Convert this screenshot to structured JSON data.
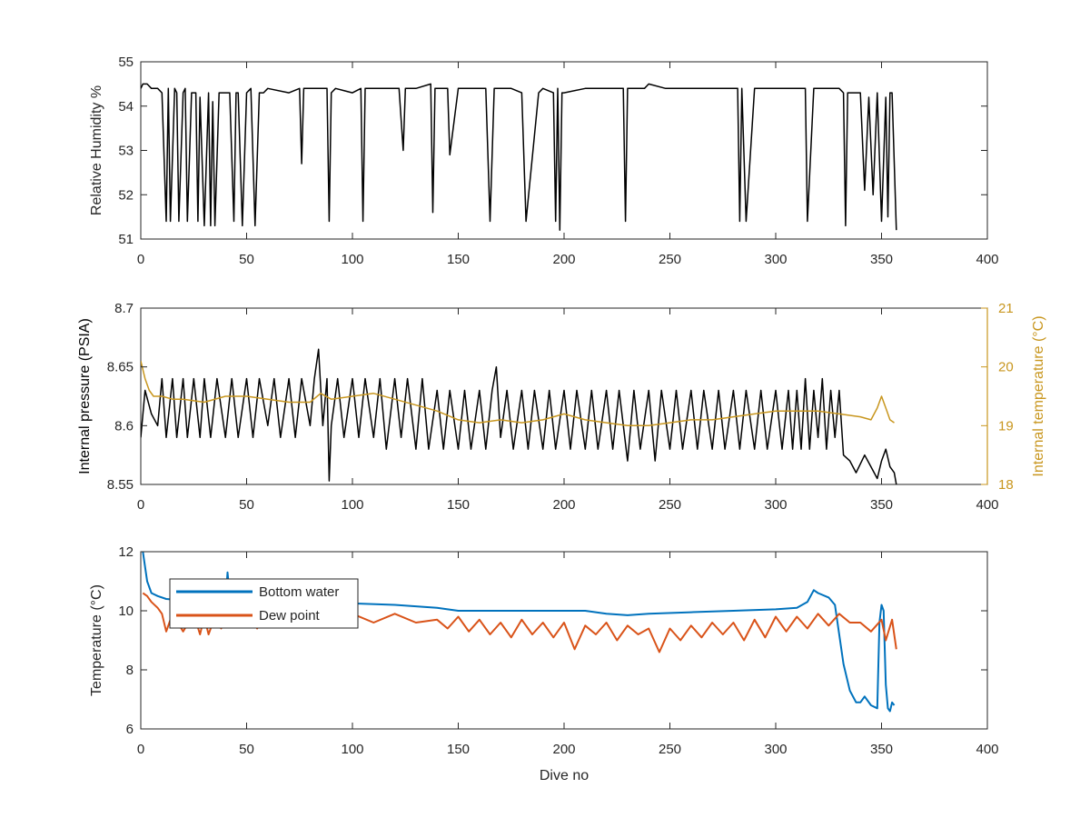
{
  "figure": {
    "xlabel": "Dive no",
    "colors": {
      "axes": "#262626",
      "black_series": "#000000",
      "temperature_right": "#c8961e",
      "bottom_water": "#0072bd",
      "dew_point": "#d95319"
    }
  },
  "chart_data": [
    {
      "type": "line",
      "title": "",
      "xlabel": "",
      "ylabel": "Relative Humidity %",
      "xlim": [
        0,
        400
      ],
      "ylim": [
        51,
        55
      ],
      "xticks": [
        "0",
        "50",
        "100",
        "150",
        "200",
        "250",
        "300",
        "350",
        "400"
      ],
      "yticks": [
        "51",
        "52",
        "53",
        "54",
        "55"
      ],
      "series": [
        {
          "color": "#000000",
          "x": [
            0,
            1,
            3,
            5,
            8,
            10,
            12,
            13,
            14,
            16,
            17,
            18,
            20,
            21,
            22,
            24,
            26,
            27,
            28,
            30,
            32,
            33,
            34,
            35,
            37,
            38,
            40,
            42,
            44,
            45,
            46,
            48,
            50,
            52,
            54,
            56,
            58,
            60,
            70,
            75,
            76,
            77,
            80,
            88,
            89,
            90,
            92,
            100,
            104,
            105,
            106,
            108,
            115,
            122,
            124,
            125,
            126,
            130,
            137,
            138,
            139,
            140,
            145,
            146,
            150,
            152,
            158,
            160,
            163,
            165,
            167,
            168,
            170,
            175,
            180,
            182,
            188,
            190,
            195,
            196,
            197,
            198,
            199,
            200,
            210,
            215,
            220,
            228,
            229,
            230,
            238,
            240,
            248,
            250,
            260,
            268,
            270,
            278,
            282,
            283,
            284,
            286,
            290,
            292,
            295,
            300,
            310,
            312,
            314,
            315,
            318,
            320,
            325,
            328,
            330,
            332,
            333,
            334,
            340,
            342,
            344,
            346,
            348,
            350,
            352,
            353,
            354,
            355,
            357
          ],
          "y": [
            54.4,
            54.5,
            54.5,
            54.4,
            54.4,
            54.3,
            51.4,
            54.4,
            51.4,
            54.4,
            54.3,
            51.4,
            54.3,
            54.4,
            51.4,
            54.3,
            54.3,
            51.4,
            54.2,
            51.3,
            54.3,
            51.3,
            54.1,
            51.3,
            54.3,
            54.3,
            54.3,
            54.3,
            51.4,
            54.3,
            54.3,
            51.3,
            54.3,
            54.4,
            51.3,
            54.3,
            54.3,
            54.4,
            54.3,
            54.4,
            52.7,
            54.4,
            54.4,
            54.4,
            51.4,
            54.3,
            54.4,
            54.3,
            54.4,
            51.4,
            54.4,
            54.4,
            54.4,
            54.4,
            53.0,
            54.4,
            54.4,
            54.4,
            54.5,
            51.6,
            54.4,
            54.4,
            54.4,
            52.9,
            54.4,
            54.4,
            54.4,
            54.4,
            54.4,
            51.4,
            54.4,
            54.4,
            54.4,
            54.4,
            54.3,
            51.4,
            54.3,
            54.4,
            54.3,
            51.4,
            54.4,
            51.2,
            54.3,
            54.3,
            54.4,
            54.4,
            54.4,
            54.4,
            51.4,
            54.4,
            54.4,
            54.5,
            54.4,
            54.4,
            54.4,
            54.4,
            54.4,
            54.4,
            54.4,
            51.4,
            54.4,
            51.4,
            54.4,
            54.4,
            54.4,
            54.4,
            54.4,
            54.4,
            54.4,
            51.4,
            54.4,
            54.4,
            54.4,
            54.4,
            54.4,
            54.3,
            51.3,
            54.3,
            54.3,
            52.1,
            54.2,
            52.0,
            54.3,
            51.4,
            54.2,
            51.5,
            54.3,
            54.3,
            51.2
          ]
        }
      ]
    },
    {
      "type": "line",
      "title": "",
      "xlabel": "",
      "ylabel": "Internal pressure (PSIA)",
      "y2label": "Internal temperature (°C)",
      "xlim": [
        0,
        400
      ],
      "ylim": [
        8.55,
        8.7
      ],
      "y2lim": [
        18,
        21
      ],
      "xticks": [
        "0",
        "50",
        "100",
        "150",
        "200",
        "250",
        "300",
        "350",
        "400"
      ],
      "yticks": [
        "8.55",
        "8.6",
        "8.65",
        "8.7"
      ],
      "y2ticks": [
        "18",
        "19",
        "20",
        "21"
      ],
      "series": [
        {
          "axis": "left",
          "color": "#000000",
          "x": [
            0,
            2,
            5,
            8,
            10,
            12,
            15,
            17,
            20,
            22,
            25,
            28,
            30,
            33,
            36,
            40,
            43,
            46,
            50,
            53,
            56,
            60,
            63,
            66,
            70,
            73,
            76,
            80,
            82,
            84,
            86,
            88,
            89,
            90,
            93,
            96,
            100,
            103,
            106,
            110,
            113,
            116,
            120,
            123,
            126,
            130,
            133,
            136,
            140,
            143,
            146,
            150,
            153,
            156,
            160,
            163,
            166,
            168,
            170,
            173,
            176,
            180,
            183,
            186,
            190,
            193,
            196,
            200,
            203,
            206,
            210,
            213,
            216,
            220,
            223,
            226,
            230,
            233,
            236,
            240,
            243,
            246,
            250,
            253,
            256,
            260,
            263,
            266,
            270,
            273,
            276,
            280,
            283,
            286,
            290,
            293,
            296,
            300,
            303,
            306,
            308,
            310,
            312,
            314,
            316,
            318,
            320,
            322,
            324,
            326,
            328,
            330,
            332,
            335,
            338,
            342,
            345,
            348,
            350,
            352,
            354,
            356,
            357
          ],
          "y": [
            8.59,
            8.63,
            8.61,
            8.6,
            8.64,
            8.59,
            8.64,
            8.59,
            8.64,
            8.59,
            8.64,
            8.59,
            8.64,
            8.59,
            8.64,
            8.59,
            8.64,
            8.59,
            8.64,
            8.59,
            8.64,
            8.6,
            8.64,
            8.59,
            8.64,
            8.59,
            8.64,
            8.6,
            8.64,
            8.665,
            8.6,
            8.64,
            8.553,
            8.6,
            8.64,
            8.59,
            8.64,
            8.59,
            8.64,
            8.59,
            8.64,
            8.58,
            8.64,
            8.59,
            8.64,
            8.58,
            8.64,
            8.58,
            8.63,
            8.58,
            8.63,
            8.58,
            8.63,
            8.58,
            8.63,
            8.58,
            8.63,
            8.65,
            8.59,
            8.63,
            8.58,
            8.63,
            8.58,
            8.63,
            8.58,
            8.63,
            8.58,
            8.63,
            8.58,
            8.63,
            8.58,
            8.63,
            8.58,
            8.63,
            8.58,
            8.63,
            8.57,
            8.63,
            8.58,
            8.63,
            8.57,
            8.63,
            8.58,
            8.63,
            8.58,
            8.63,
            8.58,
            8.63,
            8.58,
            8.63,
            8.58,
            8.63,
            8.58,
            8.63,
            8.58,
            8.63,
            8.58,
            8.63,
            8.58,
            8.63,
            8.58,
            8.63,
            8.58,
            8.64,
            8.58,
            8.63,
            8.59,
            8.64,
            8.58,
            8.63,
            8.59,
            8.63,
            8.575,
            8.57,
            8.56,
            8.575,
            8.565,
            8.555,
            8.57,
            8.58,
            8.565,
            8.56,
            8.55
          ]
        },
        {
          "axis": "right",
          "color": "#c8961e",
          "x": [
            0,
            2,
            4,
            6,
            10,
            15,
            20,
            30,
            40,
            50,
            60,
            70,
            80,
            85,
            90,
            100,
            110,
            120,
            130,
            140,
            150,
            160,
            170,
            180,
            190,
            200,
            210,
            220,
            230,
            240,
            250,
            260,
            270,
            280,
            290,
            300,
            310,
            320,
            330,
            340,
            345,
            348,
            350,
            352,
            354,
            356
          ],
          "y": [
            20.1,
            19.8,
            19.6,
            19.5,
            19.5,
            19.45,
            19.45,
            19.4,
            19.5,
            19.5,
            19.45,
            19.4,
            19.4,
            19.55,
            19.45,
            19.5,
            19.55,
            19.45,
            19.35,
            19.25,
            19.1,
            19.05,
            19.1,
            19.05,
            19.1,
            19.2,
            19.1,
            19.05,
            19.0,
            19.0,
            19.05,
            19.1,
            19.1,
            19.15,
            19.2,
            19.25,
            19.25,
            19.25,
            19.2,
            19.15,
            19.1,
            19.3,
            19.5,
            19.3,
            19.1,
            19.05
          ]
        }
      ]
    },
    {
      "type": "line",
      "title": "",
      "xlabel": "Dive no",
      "ylabel": "Temperature (°C)",
      "xlim": [
        0,
        400
      ],
      "ylim": [
        6,
        12
      ],
      "xticks": [
        "0",
        "50",
        "100",
        "150",
        "200",
        "250",
        "300",
        "350",
        "400"
      ],
      "yticks": [
        "6",
        "8",
        "10",
        "12"
      ],
      "legend": "upper-left",
      "series": [
        {
          "name": "Bottom water",
          "color": "#0072bd",
          "x": [
            1,
            3,
            5,
            8,
            12,
            20,
            30,
            40,
            41,
            42,
            45,
            50,
            60,
            80,
            100,
            120,
            140,
            150,
            160,
            180,
            200,
            210,
            220,
            230,
            240,
            260,
            280,
            300,
            310,
            315,
            318,
            320,
            325,
            328,
            330,
            332,
            335,
            338,
            340,
            342,
            345,
            348,
            349,
            350,
            351,
            352,
            353,
            354,
            355,
            356
          ],
          "y": [
            12.0,
            11.0,
            10.6,
            10.5,
            10.4,
            10.35,
            10.3,
            10.3,
            11.3,
            10.5,
            10.3,
            10.3,
            10.3,
            10.3,
            10.25,
            10.2,
            10.1,
            10.0,
            10.0,
            10.0,
            10.0,
            10.0,
            9.9,
            9.85,
            9.9,
            9.95,
            10.0,
            10.05,
            10.1,
            10.3,
            10.7,
            10.6,
            10.45,
            10.2,
            9.2,
            8.2,
            7.3,
            6.9,
            6.9,
            7.1,
            6.8,
            6.7,
            9.6,
            10.2,
            10.0,
            7.5,
            6.7,
            6.6,
            6.9,
            6.8
          ]
        },
        {
          "name": "Dew point",
          "color": "#d95319",
          "x": [
            1,
            3,
            5,
            8,
            10,
            12,
            15,
            20,
            25,
            28,
            30,
            32,
            35,
            38,
            40,
            45,
            50,
            55,
            60,
            70,
            80,
            90,
            100,
            110,
            120,
            130,
            140,
            145,
            150,
            155,
            160,
            165,
            170,
            175,
            180,
            185,
            190,
            195,
            200,
            205,
            210,
            215,
            220,
            225,
            230,
            235,
            240,
            245,
            250,
            255,
            260,
            265,
            270,
            275,
            280,
            285,
            290,
            295,
            300,
            305,
            310,
            315,
            320,
            325,
            330,
            335,
            340,
            345,
            350,
            352,
            355,
            357
          ],
          "y": [
            10.6,
            10.5,
            10.3,
            10.1,
            9.9,
            9.3,
            9.9,
            9.3,
            9.9,
            9.2,
            9.8,
            9.2,
            9.8,
            9.4,
            9.9,
            9.5,
            9.9,
            9.4,
            9.9,
            9.5,
            9.9,
            9.5,
            9.9,
            9.6,
            9.9,
            9.6,
            9.7,
            9.4,
            9.8,
            9.3,
            9.7,
            9.2,
            9.6,
            9.1,
            9.7,
            9.2,
            9.6,
            9.1,
            9.6,
            8.7,
            9.5,
            9.2,
            9.6,
            9.0,
            9.5,
            9.2,
            9.4,
            8.6,
            9.4,
            9.0,
            9.5,
            9.1,
            9.6,
            9.2,
            9.6,
            9.0,
            9.7,
            9.1,
            9.8,
            9.3,
            9.8,
            9.4,
            9.9,
            9.5,
            9.9,
            9.6,
            9.6,
            9.3,
            9.7,
            9.0,
            9.7,
            8.7
          ]
        }
      ]
    }
  ]
}
